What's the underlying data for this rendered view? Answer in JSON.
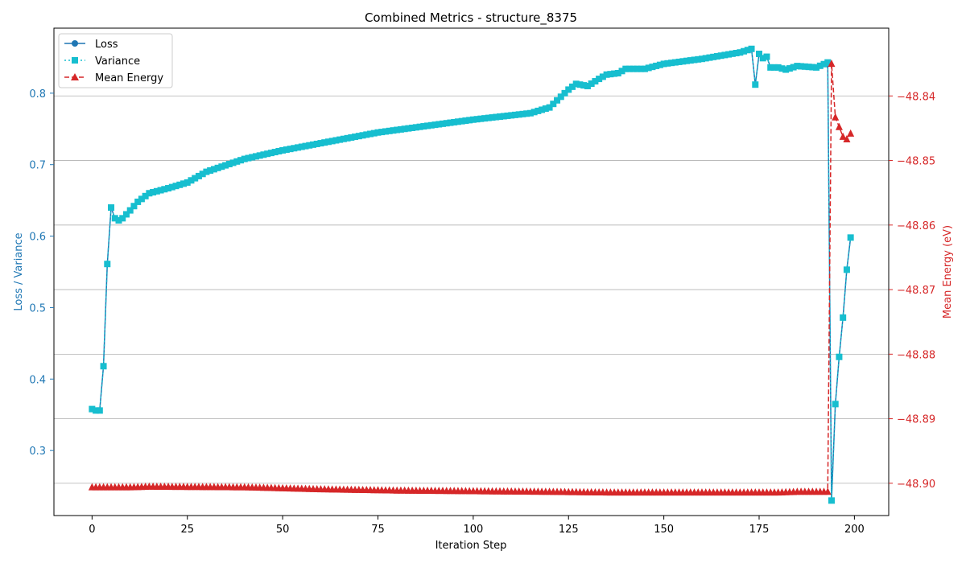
{
  "chart_data": {
    "type": "line",
    "title": "Combined Metrics - structure_8375",
    "xlabel": "Iteration Step",
    "ylabel_left": "Loss / Variance",
    "ylabel_right": "Mean Energy (eV)",
    "xlim": [
      -10,
      209
    ],
    "ylim_left": [
      0.209,
      0.891
    ],
    "ylim_right": [
      -48.905,
      -48.8295
    ],
    "x_ticks": [
      0,
      25,
      50,
      75,
      100,
      125,
      150,
      175,
      200
    ],
    "y_ticks_left": [
      0.3,
      0.4,
      0.5,
      0.6,
      0.7,
      0.8
    ],
    "y_ticks_right": [
      -48.9,
      -48.89,
      -48.88,
      -48.87,
      -48.86,
      -48.85,
      -48.84
    ],
    "y_tick_labels_right": [
      "−48.90",
      "−48.89",
      "−48.88",
      "−48.87",
      "−48.86",
      "−48.85",
      "−48.84"
    ],
    "grid": "horizontal (right axis)",
    "legend_position": "top-left",
    "colors": {
      "loss": "#1f77b4",
      "variance": "#17becf",
      "energy": "#d62728",
      "left_axis": "#1f77b4",
      "right_axis": "#d62728"
    },
    "series": [
      {
        "name": "Loss",
        "axis": "left",
        "style": "solid",
        "marker": "circle",
        "keypoints": [
          [
            0,
            0.358
          ],
          [
            1,
            0.356
          ],
          [
            2,
            0.356
          ],
          [
            3,
            0.418
          ],
          [
            4,
            0.561
          ],
          [
            5,
            0.64
          ],
          [
            6,
            0.625
          ],
          [
            7,
            0.622
          ],
          [
            8,
            0.625
          ],
          [
            10,
            0.636
          ],
          [
            12,
            0.648
          ],
          [
            15,
            0.66
          ],
          [
            20,
            0.667
          ],
          [
            25,
            0.675
          ],
          [
            30,
            0.69
          ],
          [
            40,
            0.708
          ],
          [
            50,
            0.72
          ],
          [
            75,
            0.745
          ],
          [
            100,
            0.763
          ],
          [
            115,
            0.772
          ],
          [
            120,
            0.78
          ],
          [
            125,
            0.805
          ],
          [
            127,
            0.813
          ],
          [
            130,
            0.81
          ],
          [
            133,
            0.82
          ],
          [
            135,
            0.826
          ],
          [
            138,
            0.828
          ],
          [
            140,
            0.834
          ],
          [
            145,
            0.834
          ],
          [
            150,
            0.841
          ],
          [
            160,
            0.848
          ],
          [
            170,
            0.857
          ],
          [
            173,
            0.862
          ],
          [
            174,
            0.812
          ],
          [
            175,
            0.855
          ],
          [
            176,
            0.849
          ],
          [
            177,
            0.851
          ],
          [
            178,
            0.836
          ],
          [
            180,
            0.836
          ],
          [
            182,
            0.833
          ],
          [
            185,
            0.838
          ],
          [
            190,
            0.836
          ],
          [
            193,
            0.843
          ],
          [
            194,
            0.23
          ],
          [
            195,
            0.365
          ],
          [
            196,
            0.431
          ],
          [
            197,
            0.486
          ],
          [
            198,
            0.553
          ],
          [
            199,
            0.598
          ]
        ]
      },
      {
        "name": "Variance",
        "axis": "left",
        "style": "dotted",
        "marker": "square",
        "keypoints": [
          [
            0,
            0.358
          ],
          [
            1,
            0.356
          ],
          [
            2,
            0.356
          ],
          [
            3,
            0.418
          ],
          [
            4,
            0.561
          ],
          [
            5,
            0.64
          ],
          [
            6,
            0.625
          ],
          [
            7,
            0.622
          ],
          [
            8,
            0.625
          ],
          [
            10,
            0.636
          ],
          [
            12,
            0.648
          ],
          [
            15,
            0.66
          ],
          [
            20,
            0.667
          ],
          [
            25,
            0.675
          ],
          [
            30,
            0.69
          ],
          [
            40,
            0.708
          ],
          [
            50,
            0.72
          ],
          [
            75,
            0.745
          ],
          [
            100,
            0.763
          ],
          [
            115,
            0.772
          ],
          [
            120,
            0.78
          ],
          [
            125,
            0.805
          ],
          [
            127,
            0.813
          ],
          [
            130,
            0.81
          ],
          [
            133,
            0.82
          ],
          [
            135,
            0.826
          ],
          [
            138,
            0.828
          ],
          [
            140,
            0.834
          ],
          [
            145,
            0.834
          ],
          [
            150,
            0.841
          ],
          [
            160,
            0.848
          ],
          [
            170,
            0.857
          ],
          [
            173,
            0.862
          ],
          [
            174,
            0.812
          ],
          [
            175,
            0.855
          ],
          [
            176,
            0.849
          ],
          [
            177,
            0.851
          ],
          [
            178,
            0.836
          ],
          [
            180,
            0.836
          ],
          [
            182,
            0.833
          ],
          [
            185,
            0.838
          ],
          [
            190,
            0.836
          ],
          [
            193,
            0.843
          ],
          [
            194,
            0.23
          ],
          [
            195,
            0.365
          ],
          [
            196,
            0.431
          ],
          [
            197,
            0.486
          ],
          [
            198,
            0.553
          ],
          [
            199,
            0.598
          ]
        ]
      },
      {
        "name": "Mean Energy",
        "axis": "right",
        "style": "dashed",
        "marker": "triangle",
        "keypoints": [
          [
            0,
            -48.9006
          ],
          [
            10,
            -48.9006
          ],
          [
            15,
            -48.9005
          ],
          [
            40,
            -48.9006
          ],
          [
            60,
            -48.9009
          ],
          [
            80,
            -48.9011
          ],
          [
            100,
            -48.9012
          ],
          [
            120,
            -48.9013
          ],
          [
            135,
            -48.9014
          ],
          [
            150,
            -48.9014
          ],
          [
            180,
            -48.9014
          ],
          [
            185,
            -48.9013
          ],
          [
            193,
            -48.9013
          ],
          [
            194,
            -48.835
          ],
          [
            195,
            -48.8433
          ],
          [
            196,
            -48.8448
          ],
          [
            197,
            -48.8463
          ],
          [
            198,
            -48.8467
          ],
          [
            199,
            -48.8458
          ]
        ]
      }
    ]
  }
}
